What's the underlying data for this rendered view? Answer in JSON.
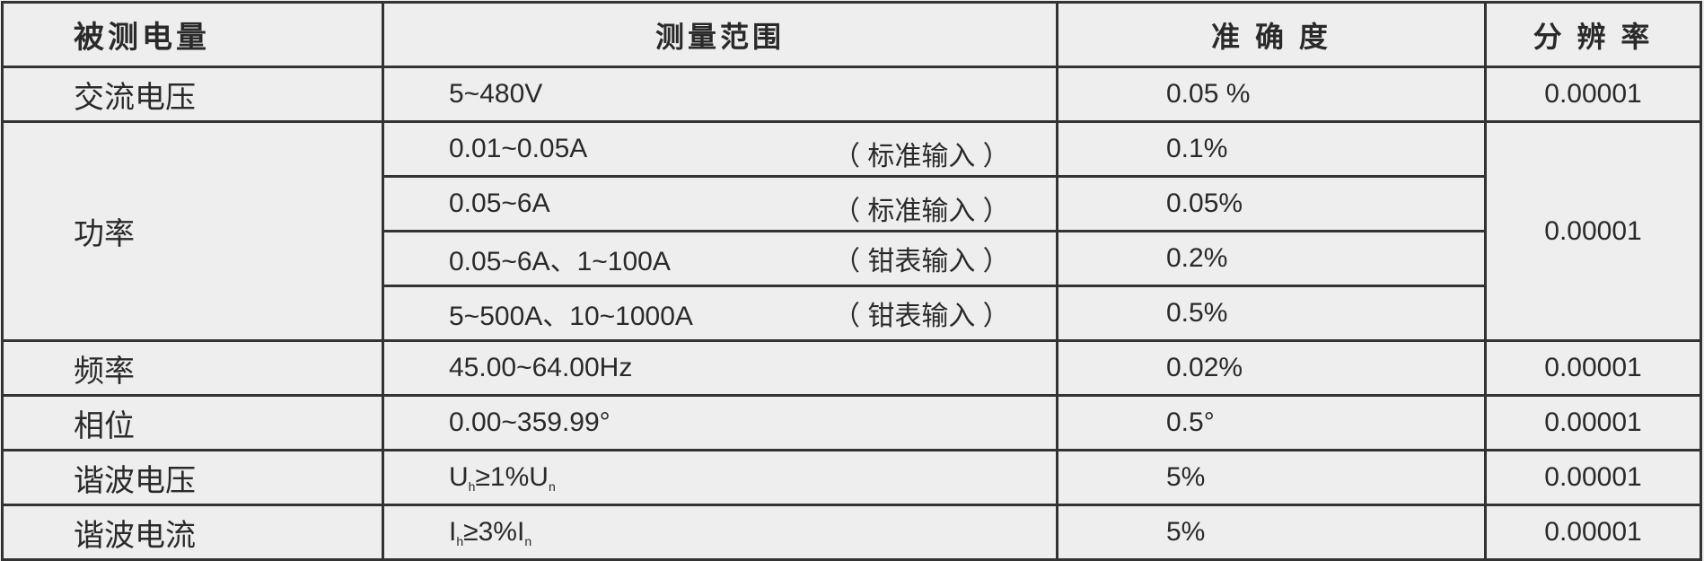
{
  "headers": [
    "被测电量",
    "测量范围",
    "准 确 度",
    "分 辨 率"
  ],
  "rows": {
    "ac_voltage": {
      "name": "交流电压",
      "range": "5~480V",
      "accuracy": "0.05 %",
      "resolution": "0.00001"
    },
    "power": {
      "name": "功率",
      "resolution": "0.00001",
      "subrows": [
        {
          "range": "0.01~0.05A",
          "note": "（ 标准输入 ）",
          "accuracy": "0.1%"
        },
        {
          "range": "0.05~6A",
          "note": "（ 标准输入 ）",
          "accuracy": "0.05%"
        },
        {
          "range": "0.05~6A、1~100A",
          "note": "（ 钳表输入 ）",
          "accuracy": "0.2%"
        },
        {
          "range": "5~500A、10~1000A",
          "note": "（ 钳表输入 ）",
          "accuracy": "0.5%"
        }
      ]
    },
    "frequency": {
      "name": "频率",
      "range": "45.00~64.00Hz",
      "accuracy": "0.02%",
      "resolution": "0.00001"
    },
    "phase": {
      "name": "相位",
      "range": "0.00~359.99°",
      "accuracy": "0.5°",
      "resolution": "0.00001"
    },
    "harmonic_voltage": {
      "name": "谐波电压",
      "range_a": "U",
      "range_a_sub": "h",
      "range_b": "≥1%U",
      "range_b_sub": "n",
      "accuracy": "5%",
      "resolution": "0.00001"
    },
    "harmonic_current": {
      "name": "谐波电流",
      "range_a": "I",
      "range_a_sub": "h",
      "range_b": "≥3%I",
      "range_b_sub": "n",
      "accuracy": "5%",
      "resolution": "0.00001"
    }
  }
}
